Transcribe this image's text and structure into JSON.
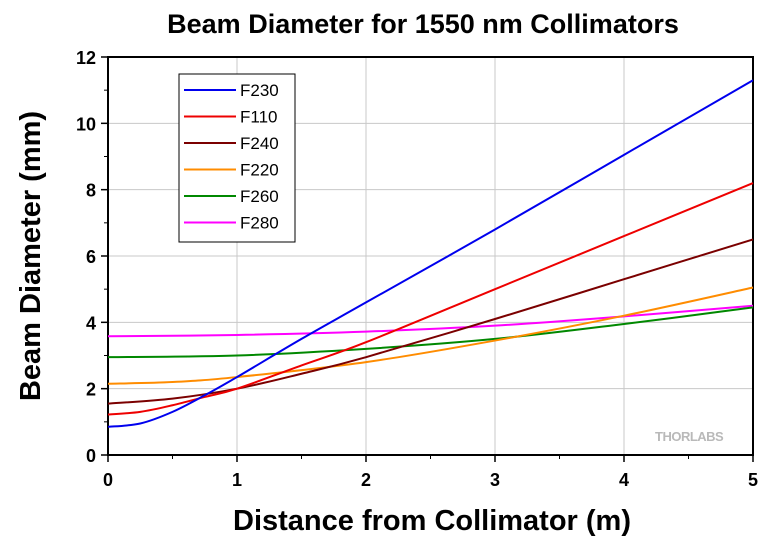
{
  "chart_data": {
    "type": "line",
    "title": "Beam Diameter for 1550 nm Collimators",
    "xlabel": "Distance from Collimator (m)",
    "ylabel": "Beam Diameter (mm)",
    "xlim": [
      0,
      5
    ],
    "ylim": [
      0,
      12
    ],
    "xticks": [
      "0",
      "1",
      "2",
      "3",
      "4",
      "5"
    ],
    "yticks": [
      "0",
      "2",
      "4",
      "6",
      "8",
      "10",
      "12"
    ],
    "grid": true,
    "legend_position": "top-left",
    "watermark": "THORLABS",
    "series": [
      {
        "name": "F230",
        "color": "#0000ee",
        "x": [
          0,
          0.25,
          0.5,
          0.75,
          1,
          1.5,
          2,
          3,
          4,
          5
        ],
        "values": [
          0.85,
          0.95,
          1.3,
          1.8,
          2.35,
          3.5,
          4.6,
          6.8,
          9.05,
          11.3
        ]
      },
      {
        "name": "F110",
        "color": "#ee0000",
        "x": [
          0,
          0.25,
          0.5,
          0.75,
          1,
          1.5,
          2,
          3,
          4,
          5
        ],
        "values": [
          1.22,
          1.3,
          1.5,
          1.75,
          2.0,
          2.7,
          3.4,
          5.0,
          6.6,
          8.2
        ]
      },
      {
        "name": "F240",
        "color": "#7b0000",
        "x": [
          0,
          0.5,
          1,
          1.5,
          2,
          3,
          4,
          5
        ],
        "values": [
          1.55,
          1.7,
          2.0,
          2.45,
          2.95,
          4.1,
          5.3,
          6.5
        ]
      },
      {
        "name": "F220",
        "color": "#ff8c00",
        "x": [
          0,
          0.5,
          1,
          2,
          3,
          4,
          5
        ],
        "values": [
          2.15,
          2.2,
          2.35,
          2.8,
          3.45,
          4.2,
          5.05
        ]
      },
      {
        "name": "F260",
        "color": "#008800",
        "x": [
          0,
          1,
          2,
          3,
          4,
          5
        ],
        "values": [
          2.95,
          3.0,
          3.2,
          3.5,
          3.95,
          4.45
        ]
      },
      {
        "name": "F280",
        "color": "#ff00ff",
        "x": [
          0,
          1,
          2,
          3,
          4,
          5
        ],
        "values": [
          3.58,
          3.62,
          3.72,
          3.9,
          4.18,
          4.5
        ]
      }
    ]
  }
}
